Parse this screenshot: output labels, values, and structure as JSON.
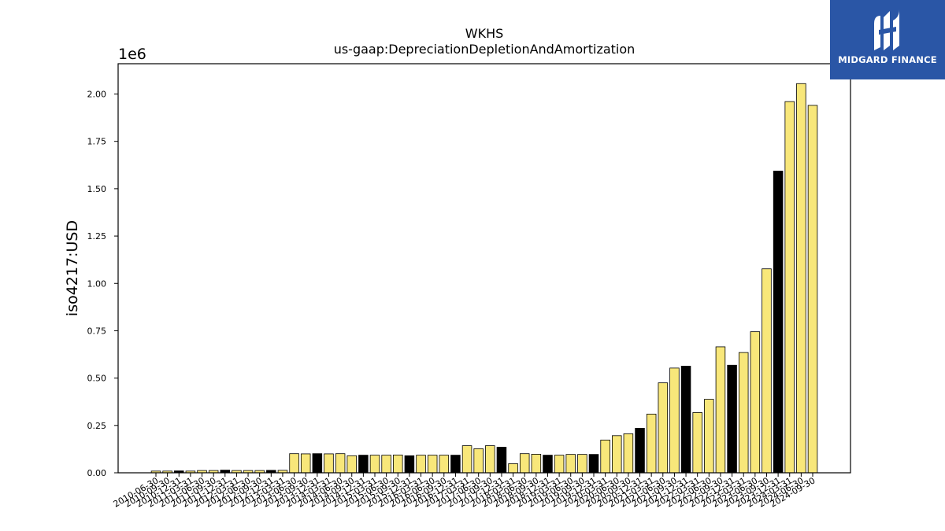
{
  "chart_data": {
    "type": "bar",
    "title": "WKHS",
    "subtitle": "us-gaap:DepreciationDepletionAndAmortization",
    "ylabel": "iso4217:USD",
    "xlabel": "",
    "y_scale_label": "1e6",
    "ylim": [
      0,
      2160000
    ],
    "yticks": [
      "0.00",
      "0.25",
      "0.50",
      "0.75",
      "1.00",
      "1.25",
      "1.50",
      "1.75",
      "2.00"
    ],
    "grid": false,
    "legend": "none",
    "colors": {
      "regular": "#f8e77a",
      "fy": "#000000",
      "edge": "#000000"
    },
    "categories": [
      "2010-06-30",
      "2010-09-30",
      "2010-12-31",
      "2011-03-31",
      "2011-06-30",
      "2011-09-30",
      "2011-12-31",
      "2012-03-31",
      "2012-06-30",
      "2012-09-30",
      "2012-12-31",
      "2013-03-31",
      "2013-06-30",
      "2013-09-30",
      "2013-12-31",
      "2014-03-31",
      "2014-06-30",
      "2014-09-30",
      "2014-12-31",
      "2015-03-31",
      "2015-06-30",
      "2015-09-30",
      "2015-12-31",
      "2016-03-31",
      "2016-06-30",
      "2016-09-30",
      "2016-12-31",
      "2017-03-31",
      "2017-06-30",
      "2017-09-30",
      "2017-12-31",
      "2018-03-31",
      "2018-06-30",
      "2018-09-30",
      "2018-12-31",
      "2019-03-31",
      "2019-06-30",
      "2019-09-30",
      "2019-12-31",
      "2020-03-31",
      "2020-06-30",
      "2020-09-30",
      "2020-12-31",
      "2021-03-31",
      "2021-06-30",
      "2021-09-30",
      "2021-12-31",
      "2022-03-31",
      "2022-06-30",
      "2022-09-30",
      "2022-12-31",
      "2023-03-31",
      "2023-06-30",
      "2023-09-30",
      "2023-12-31",
      "2024-03-31",
      "2024-06-30",
      "2024-09-30"
    ],
    "values": [
      9000,
      9000,
      10000,
      9000,
      12000,
      12000,
      14000,
      12000,
      12000,
      12000,
      13000,
      13000,
      101000,
      100000,
      101000,
      100000,
      101000,
      90000,
      93000,
      93000,
      93000,
      94000,
      90000,
      93000,
      93000,
      93000,
      93000,
      143000,
      127000,
      143000,
      135000,
      48000,
      101000,
      98000,
      93000,
      93000,
      97000,
      97000,
      97000,
      173000,
      196000,
      206000,
      235000,
      310000,
      475000,
      553000,
      563000,
      318000,
      388000,
      665000,
      568000,
      635000,
      745000,
      1077000,
      1593000,
      1960000,
      2055000,
      1940000
    ],
    "is_fy": [
      false,
      false,
      true,
      false,
      false,
      false,
      true,
      false,
      false,
      false,
      true,
      false,
      false,
      false,
      true,
      false,
      false,
      false,
      true,
      false,
      false,
      false,
      true,
      false,
      false,
      false,
      true,
      false,
      false,
      false,
      true,
      false,
      false,
      false,
      true,
      false,
      false,
      false,
      true,
      false,
      false,
      false,
      true,
      false,
      false,
      false,
      true,
      false,
      false,
      false,
      true,
      false,
      false,
      false,
      true,
      false,
      false,
      false
    ]
  },
  "logo": {
    "text": "MIDGARD FINANCE",
    "icon": "midgard-logo-icon"
  }
}
